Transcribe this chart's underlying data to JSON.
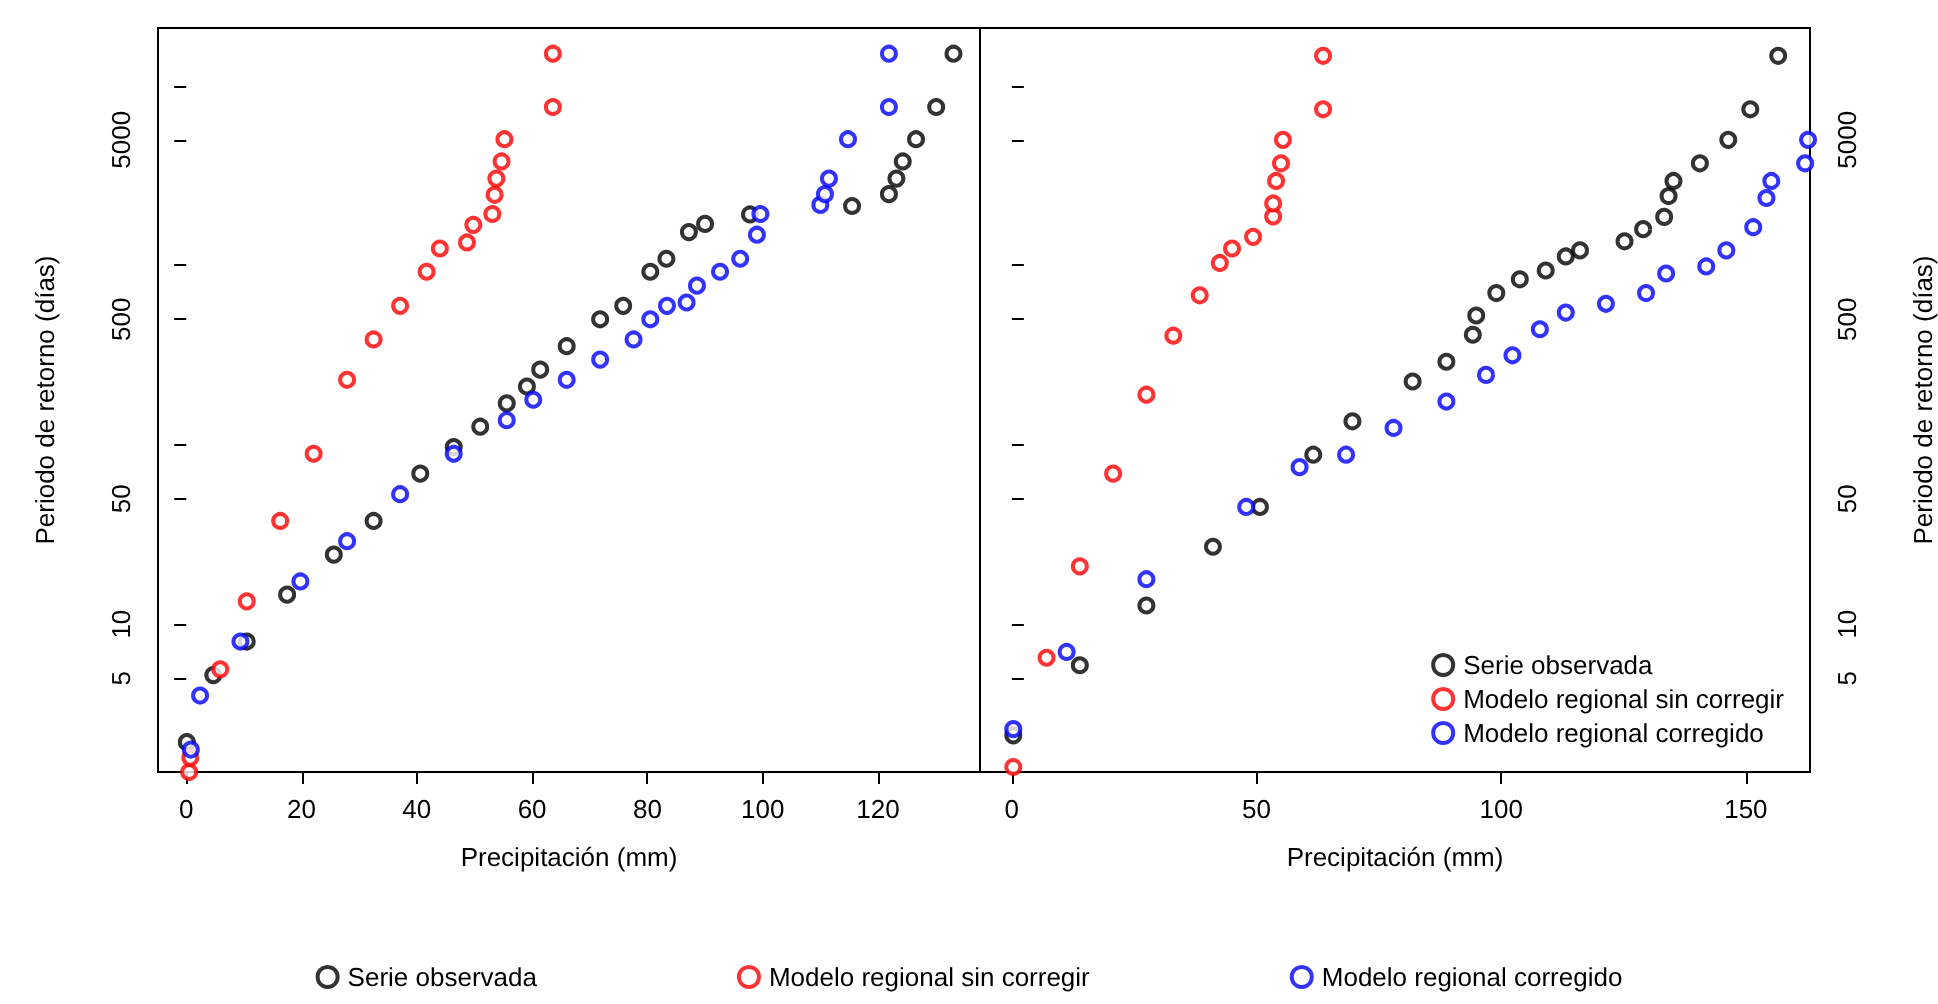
{
  "chart_data": [
    {
      "type": "scatter",
      "xlabel": "Precipitación (mm)",
      "ylabel": "Periodo de retorno (días)",
      "log": "y",
      "marker": "circle",
      "grid": false,
      "legend": "bottom",
      "xlim": [
        -4.9,
        137.7
      ],
      "xticks": [
        0,
        20,
        40,
        60,
        80,
        100,
        120
      ],
      "ylim": [
        1.5,
        21000
      ],
      "yticks": [
        5,
        10,
        50,
        {
          "value": 100,
          "label": null
        },
        500,
        {
          "value": 1000,
          "label": null
        },
        5000,
        {
          "value": 10000,
          "label": null
        }
      ],
      "series": [
        {
          "name": "Serie observada",
          "color": "#000000",
          "x": [
            0.1,
            4.7,
            10.5,
            17.5,
            25.6,
            32.5,
            40.6,
            46.4,
            51,
            55.6,
            59.1,
            61.4,
            66,
            71.8,
            75.8,
            80.5,
            83.3,
            87.2,
            90,
            97.8,
            115.5,
            121.9,
            123.2,
            124.3,
            126.6,
            130.1,
            133.1
          ],
          "values": [
            2.2,
            5.2,
            8,
            14.6,
            24.4,
            37.6,
            69,
            97,
            126,
            170,
            211,
            262,
            354,
            500,
            594,
            920,
            1087,
            1530,
            1700,
            1920,
            2140,
            2490,
            3040,
            3790,
            5040,
            7620,
            15100
          ]
        },
        {
          "name": "Modelo regional sin corregir",
          "color": "#ff0000",
          "x": [
            0.5,
            0.7,
            5.9,
            10.5,
            16.3,
            22.1,
            27.9,
            32.5,
            37.1,
            41.7,
            44,
            48.7,
            49.8,
            53.1,
            53.5,
            53.8,
            54.7,
            55.2,
            63.6,
            63.6
          ],
          "values": [
            1.5,
            1.8,
            5.6,
            13.4,
            37.6,
            89,
            230,
            386,
            594,
            920,
            1240,
            1340,
            1680,
            1930,
            2470,
            3040,
            3790,
            5040,
            7620,
            15100
          ]
        },
        {
          "name": "Modelo regional corregido",
          "color": "#0000ff",
          "x": [
            0.8,
            2.4,
            9.4,
            19.8,
            27.9,
            37.1,
            46.4,
            55.6,
            60.2,
            66,
            71.8,
            77.6,
            80.5,
            83.4,
            86.8,
            88.6,
            92.6,
            96.1,
            99,
            99.6,
            110,
            110.8,
            111.5,
            114.8,
            121.9,
            121.9
          ],
          "values": [
            2,
            4,
            8,
            17.3,
            29,
            53,
            89,
            137,
            178,
            230,
            298,
            386,
            500,
            594,
            620,
            770,
            920,
            1087,
            1480,
            1930,
            2170,
            2490,
            3040,
            5040,
            7620,
            15100
          ]
        }
      ]
    },
    {
      "type": "scatter",
      "xlabel": "Precipitación (mm)",
      "ylabel": "Periodo de retorno (días)",
      "log": "y",
      "marker": "circle",
      "grid": false,
      "legend": "bottom right",
      "xlim": [
        -6.5,
        163.1
      ],
      "xticks": [
        0,
        50,
        100,
        150
      ],
      "ylim": [
        1.5,
        21000
      ],
      "yticks": [
        5,
        10,
        50,
        {
          "value": 100,
          "label": null
        },
        500,
        {
          "value": 1000,
          "label": null
        },
        5000,
        {
          "value": 10000,
          "label": null
        }
      ],
      "series": [
        {
          "name": "Serie observada",
          "color": "#000000",
          "x": [
            0.3,
            13.9,
            27.5,
            41.1,
            50.7,
            61.6,
            69.6,
            81.9,
            88.8,
            94.2,
            94.9,
            99,
            103.8,
            109.1,
            113.2,
            116.1,
            125.2,
            129,
            133.3,
            134.2,
            135.2,
            140.6,
            146.4,
            150.9,
            156.6
          ],
          "values": [
            2.4,
            5.9,
            12.7,
            27,
            45,
            88,
            135,
            225,
            290,
            410,
            525,
            700,
            835,
            935,
            1120,
            1210,
            1360,
            1590,
            1860,
            2430,
            2950,
            3700,
            5000,
            7400,
            14700
          ]
        },
        {
          "name": "Modelo regional sin corregir",
          "color": "#ff0000",
          "x": [
            0.3,
            7.1,
            13.9,
            20.7,
            27.5,
            33,
            38.4,
            42.5,
            45,
            49.3,
            53.4,
            53.4,
            54,
            55,
            55.4,
            63.6,
            63.6
          ],
          "values": [
            1.6,
            6.5,
            21,
            69,
            190,
            405,
            680,
            1030,
            1240,
            1440,
            1870,
            2210,
            2950,
            3700,
            5000,
            7400,
            14700
          ]
        },
        {
          "name": "Modelo regional corregido",
          "color": "#0000ff",
          "x": [
            0.3,
            11.2,
            27.5,
            47.9,
            58.8,
            68.3,
            78,
            88.8,
            96.9,
            102.3,
            107.9,
            113.2,
            121.4,
            129.6,
            133.7,
            141.9,
            146,
            151.5,
            154.2,
            155.2,
            162.1,
            162.7
          ],
          "values": [
            2.6,
            7,
            17.8,
            45,
            75,
            88,
            124,
            174,
            245,
            315,
            440,
            545,
            610,
            700,
            900,
            985,
            1210,
            1630,
            2370,
            2950,
            3700,
            5000
          ]
        }
      ]
    }
  ]
}
